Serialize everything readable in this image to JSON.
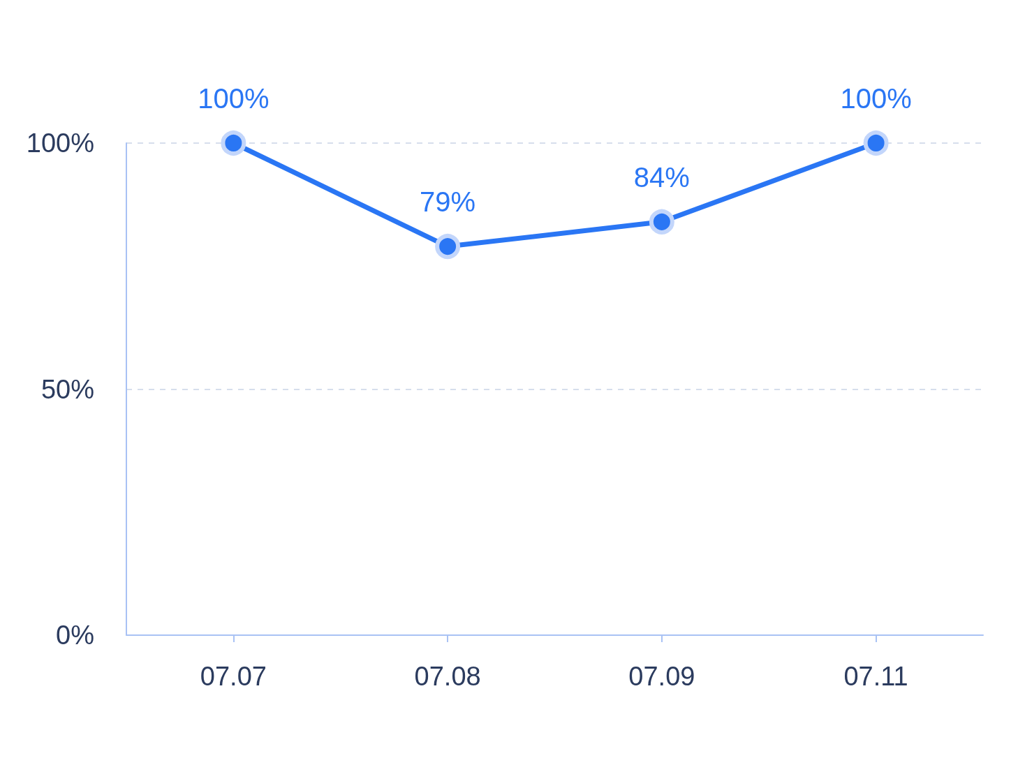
{
  "chart_data": {
    "type": "line",
    "categories": [
      "07.07",
      "07.08",
      "07.09",
      "07.11"
    ],
    "series": [
      {
        "color": "#2a76f4",
        "values": [
          100,
          79,
          84,
          100
        ],
        "value_labels": [
          "100%",
          "79%",
          "84%",
          "100%"
        ]
      }
    ],
    "ylim": [
      0,
      100
    ],
    "yticks": [
      {
        "value": 0,
        "label": "0%"
      },
      {
        "value": 50,
        "label": "50%"
      },
      {
        "value": 100,
        "label": "100%"
      }
    ],
    "grid": "y",
    "marker": "circle",
    "line_style": "solid"
  }
}
